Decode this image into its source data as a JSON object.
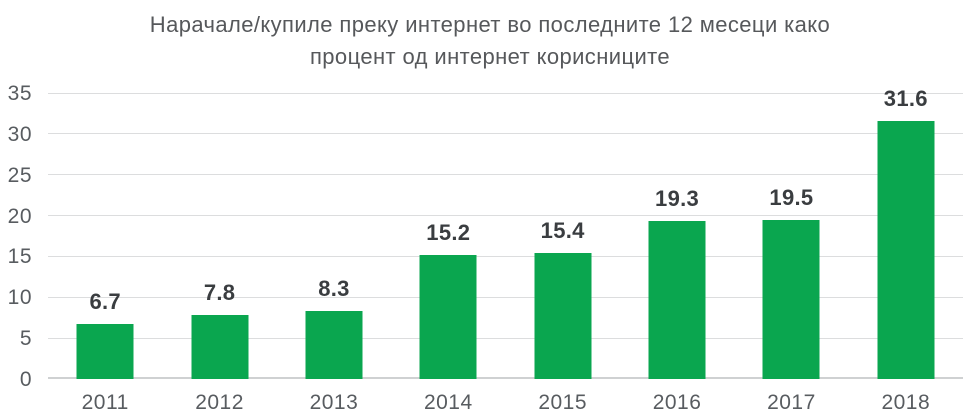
{
  "title": {
    "line1": "Нарачале/купиле преку интернет во последните 12 месеци како",
    "line2": "процент од интернет корисниците"
  },
  "chart_data": {
    "type": "bar",
    "title": "Нарачале/купиле преку интернет во последните 12 месеци како процент од интернет корисниците",
    "categories": [
      "2011",
      "2012",
      "2013",
      "2014",
      "2015",
      "2016",
      "2017",
      "2018"
    ],
    "values": [
      6.7,
      7.8,
      8.3,
      15.2,
      15.4,
      19.3,
      19.5,
      31.6
    ],
    "value_labels": [
      "6.7",
      "7.8",
      "8.3",
      "15.2",
      "15.4",
      "19.3",
      "19.5",
      "31.6"
    ],
    "xlabel": "",
    "ylabel": "",
    "ylim": [
      0,
      35
    ],
    "yticks": [
      0,
      5,
      10,
      15,
      20,
      25,
      30,
      35
    ],
    "grid": true,
    "legend_position": "none",
    "colors": {
      "bar": "#0aa64f",
      "gridline": "#dcddde",
      "baseline": "#cfd1d2",
      "axis_label": "#585c60",
      "value_label": "#3a3d40",
      "title": "#56585b"
    }
  }
}
